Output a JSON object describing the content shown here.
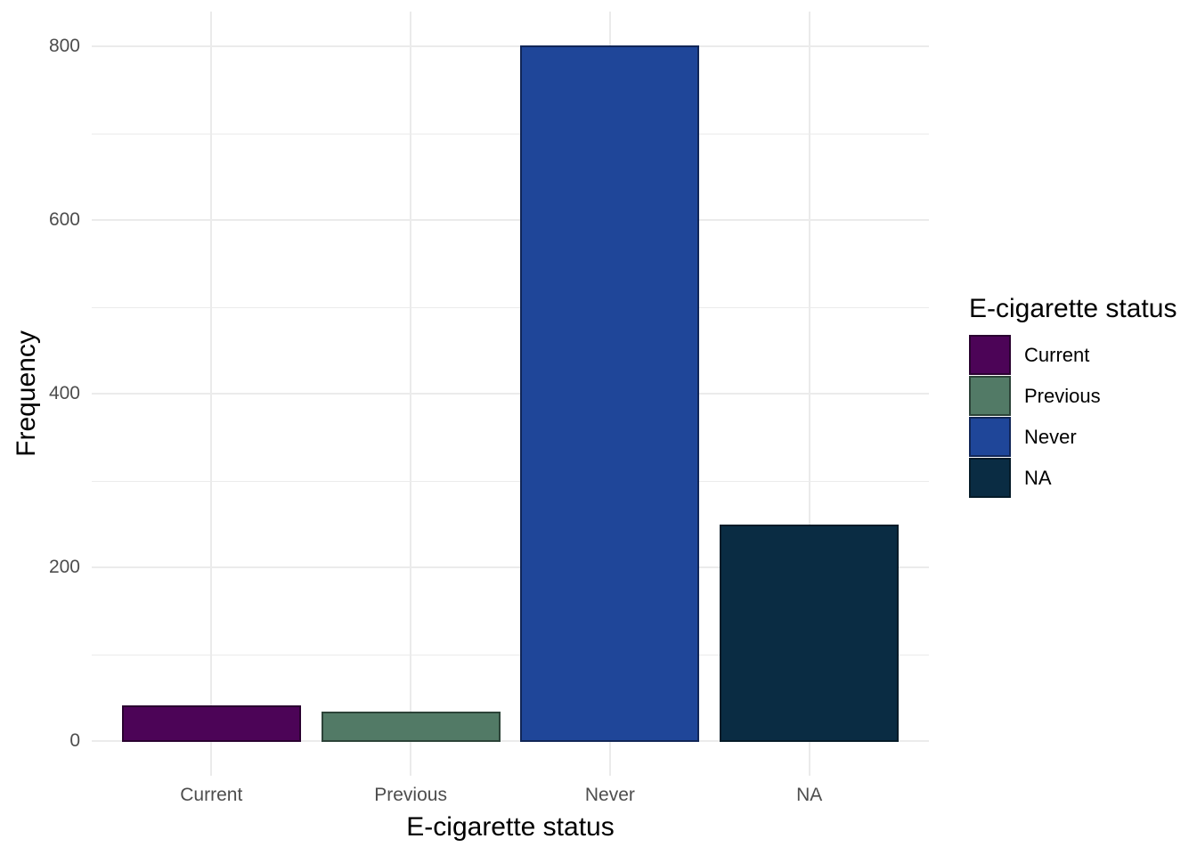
{
  "colors": {
    "background": "#FFFFFF",
    "gridline": "#EBEBEB",
    "tick_label": "#4D4D4D",
    "axis_title": "#000000",
    "legend_text": "#000000"
  },
  "chart_data": {
    "type": "bar",
    "title": "",
    "categories": [
      "Current",
      "Previous",
      "Never",
      "NA"
    ],
    "values": [
      40,
      33,
      800,
      248
    ],
    "bar_fill_colors": [
      "#4C0457",
      "#527A66",
      "#1F4699",
      "#0A2C43"
    ],
    "bar_border_colors": [
      "#2A0230",
      "#2C4338",
      "#112657",
      "#051B28"
    ],
    "xlabel": "E-cigarette status",
    "ylabel": "Frequency",
    "ylim": [
      0,
      800
    ],
    "y_major_ticks": [
      0,
      200,
      400,
      600,
      800
    ],
    "y_minor_ticks": [
      100,
      300,
      500,
      700
    ],
    "y_tick_labels": [
      "0",
      "200",
      "400",
      "600",
      "800"
    ],
    "grid": "on",
    "legend": {
      "title": "E-cigarette status",
      "position": "right",
      "entries": [
        {
          "label": "Current",
          "fill": "#4C0457",
          "border": "#2A0230"
        },
        {
          "label": "Previous",
          "fill": "#527A66",
          "border": "#2C4338"
        },
        {
          "label": "Never",
          "fill": "#1F4699",
          "border": "#112657"
        },
        {
          "label": "NA",
          "fill": "#0A2C43",
          "border": "#051B28"
        }
      ]
    }
  }
}
